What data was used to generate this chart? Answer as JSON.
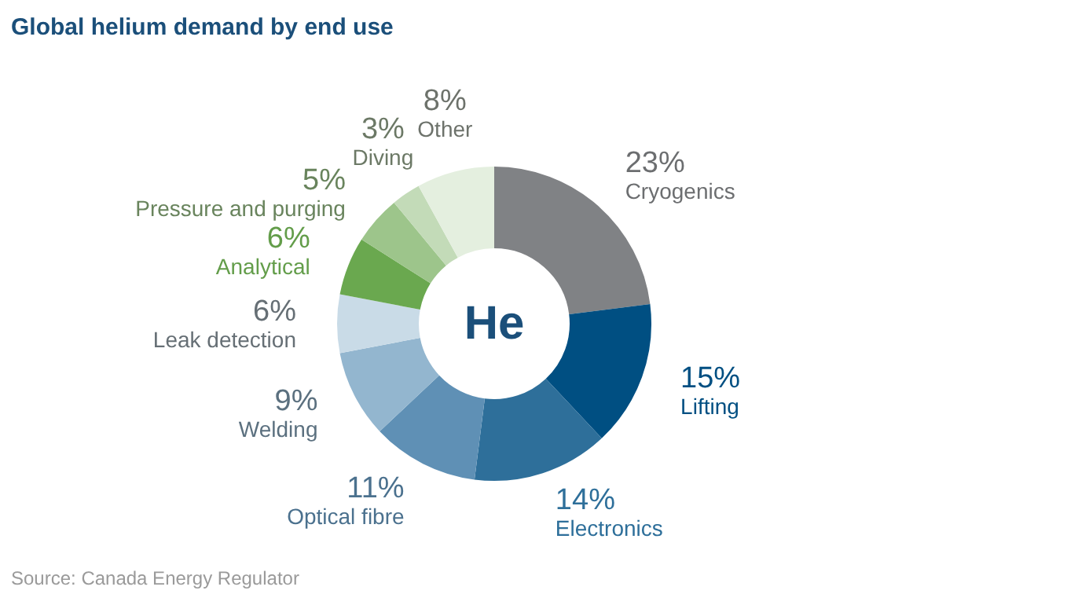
{
  "chart_data": {
    "type": "donut",
    "title": "Global helium demand by end use",
    "categories": [
      "Cryogenics",
      "Lifting",
      "Electronics",
      "Optical fibre",
      "Welding",
      "Leak detection",
      "Analytical",
      "Pressure and purging",
      "Diving",
      "Other"
    ],
    "values": [
      23,
      15,
      14,
      11,
      9,
      6,
      6,
      5,
      3,
      8
    ],
    "value_labels": [
      "23%",
      "15%",
      "14%",
      "11%",
      "9%",
      "6%",
      "6%",
      "5%",
      "3%",
      "8%"
    ],
    "colors": [
      "#808285",
      "#004f82",
      "#2e6f9a",
      "#5f90b5",
      "#93b6cf",
      "#c9dbe7",
      "#6aa84f",
      "#9dc58b",
      "#c3dbb8",
      "#e4efdf"
    ],
    "annotations": [
      "He",
      "Source: Canada Energy Regulator"
    ],
    "legend": false
  }
}
